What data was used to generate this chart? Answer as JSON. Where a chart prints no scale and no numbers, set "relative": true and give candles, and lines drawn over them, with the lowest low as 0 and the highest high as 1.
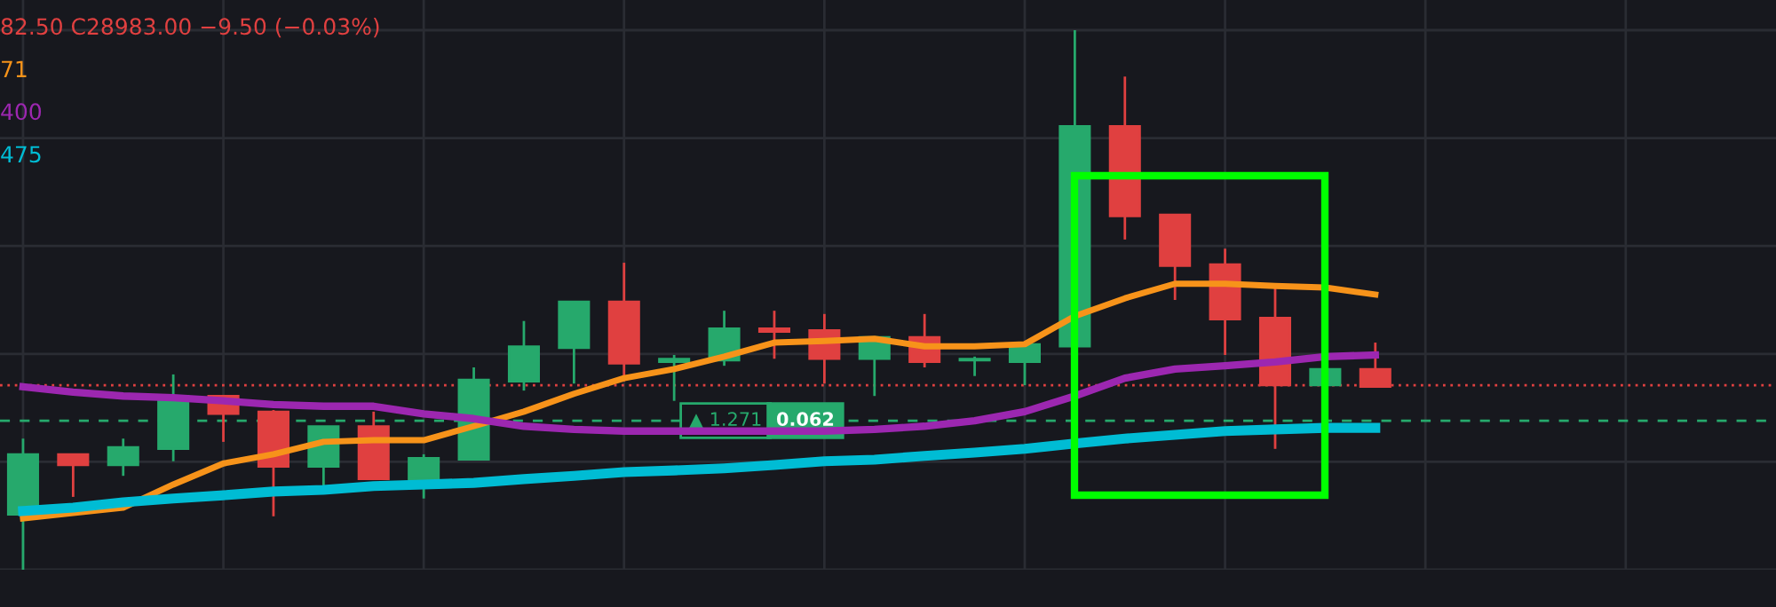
{
  "chart_data": {
    "type": "candlestick",
    "relative": true,
    "grid": true,
    "categories": [
      null,
      null,
      null,
      null,
      null,
      null,
      null,
      null,
      null,
      null,
      null,
      null,
      null,
      null,
      null,
      null,
      null,
      null,
      null,
      null,
      null,
      null,
      null,
      null,
      null,
      null,
      null,
      null
    ],
    "ohlc": [
      [
        0.102,
        0.243,
        0,
        0.214
      ],
      [
        0.214,
        0.214,
        0.135,
        0.194
      ],
      [
        0.194,
        0.243,
        0.174,
        0.227
      ],
      [
        0.224,
        0.362,
        0.201,
        0.322
      ],
      [
        0.322,
        0.322,
        0.237,
        0.289
      ],
      [
        0.293,
        0.296,
        0.099,
        0.191
      ],
      [
        0.191,
        0.266,
        0.145,
        0.266
      ],
      [
        0.266,
        0.293,
        0.168,
        0.168
      ],
      [
        0.168,
        0.214,
        0.132,
        0.207
      ],
      [
        0.204,
        0.375,
        0.204,
        0.352
      ],
      [
        0.349,
        0.461,
        0.332,
        0.414
      ],
      [
        0.411,
        0.497,
        0.345,
        0.497
      ],
      [
        0.497,
        0.569,
        0.349,
        0.382
      ],
      [
        0.385,
        0.398,
        0.313,
        0.391
      ],
      [
        0.388,
        0.48,
        0.378,
        0.447
      ],
      [
        0.447,
        0.48,
        0.391,
        0.441
      ],
      [
        0.444,
        0.474,
        0.345,
        0.391
      ],
      [
        0.391,
        0.431,
        0.322,
        0.431
      ],
      [
        0.431,
        0.474,
        0.375,
        0.385
      ],
      [
        0.388,
        0.395,
        0.359,
        0.391
      ],
      [
        0.385,
        0.418,
        0.342,
        0.418
      ],
      [
        0.414,
        1,
        0.414,
        0.822
      ],
      [
        0.822,
        0.914,
        0.612,
        0.655
      ],
      [
        0.658,
        0.658,
        0.5,
        0.563
      ],
      [
        0.566,
        0.595,
        0.398,
        0.464
      ],
      [
        0.467,
        0.526,
        0.224,
        0.342
      ],
      [
        0.342,
        0.372,
        0.342,
        0.372
      ],
      [
        0.372,
        0.421,
        0.339,
        0.339
      ]
    ],
    "series": [
      {
        "type": "line",
        "color": "#f7931a",
        "values": [
          0.095,
          0.105,
          0.115,
          0.158,
          0.197,
          0.214,
          0.237,
          0.24,
          0.24,
          0.266,
          0.293,
          0.326,
          0.355,
          0.372,
          0.395,
          0.421,
          0.424,
          0.428,
          0.414,
          0.414,
          0.418,
          0.47,
          0.503,
          0.53,
          0.53,
          0.526,
          0.523,
          0.51
        ]
      },
      {
        "type": "line",
        "color": "#9c27b0",
        "values": [
          0.339,
          0.329,
          0.322,
          0.319,
          0.313,
          0.306,
          0.303,
          0.303,
          0.289,
          0.28,
          0.266,
          0.26,
          0.257,
          0.257,
          0.257,
          0.257,
          0.257,
          0.26,
          0.266,
          0.276,
          0.293,
          0.322,
          0.355,
          0.372,
          0.378,
          0.385,
          0.395,
          0.398
        ]
      },
      {
        "type": "line",
        "color": "#00bcd4",
        "values": [
          0.109,
          0.115,
          0.125,
          0.132,
          0.138,
          0.145,
          0.148,
          0.155,
          0.158,
          0.161,
          0.168,
          0.174,
          0.181,
          0.184,
          0.188,
          0.194,
          0.201,
          0.204,
          0.211,
          0.217,
          0.224,
          0.234,
          0.243,
          0.25,
          0.257,
          0.26,
          0.263,
          0.263
        ]
      }
    ],
    "ref_lines": [
      {
        "axis": "y",
        "value": 0.342,
        "color": "#e04040",
        "line_style": "dotted"
      },
      {
        "axis": "y",
        "value": 0.276,
        "color": "#26a96c",
        "line_style": "dashed"
      }
    ],
    "annotations": [
      "82.50 C28983.00 −9.50 (−0.03%)",
      "71",
      "400",
      "475",
      "▲ 1.271",
      "0.062"
    ]
  }
}
